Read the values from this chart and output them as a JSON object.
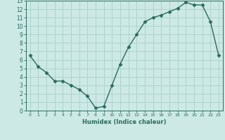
{
  "xlabel": "Humidex (Indice chaleur)",
  "x_values": [
    0,
    1,
    2,
    3,
    4,
    5,
    6,
    7,
    8,
    9,
    10,
    11,
    12,
    13,
    14,
    15,
    16,
    17,
    18,
    19,
    20,
    21,
    22,
    23
  ],
  "y_values": [
    6.5,
    5.2,
    4.5,
    3.5,
    3.5,
    3.0,
    2.5,
    1.7,
    0.3,
    0.5,
    3.0,
    5.5,
    7.5,
    9.0,
    10.5,
    11.0,
    11.3,
    11.7,
    12.1,
    12.8,
    12.5,
    12.5,
    10.5,
    6.5
  ],
  "line_color": "#2a6b5e",
  "marker": "D",
  "marker_size": 2.5,
  "background_color": "#cce9e5",
  "grid_color": "#aacfca",
  "ylim": [
    0,
    13
  ],
  "xlim": [
    -0.5,
    23.5
  ],
  "yticks": [
    0,
    1,
    2,
    3,
    4,
    5,
    6,
    7,
    8,
    9,
    10,
    11,
    12,
    13
  ],
  "xticks": [
    0,
    1,
    2,
    3,
    4,
    5,
    6,
    7,
    8,
    9,
    10,
    11,
    12,
    13,
    14,
    15,
    16,
    17,
    18,
    19,
    20,
    21,
    22,
    23
  ],
  "xlabel_fontsize": 6.0,
  "tick_fontsize_x": 4.5,
  "tick_fontsize_y": 5.5
}
